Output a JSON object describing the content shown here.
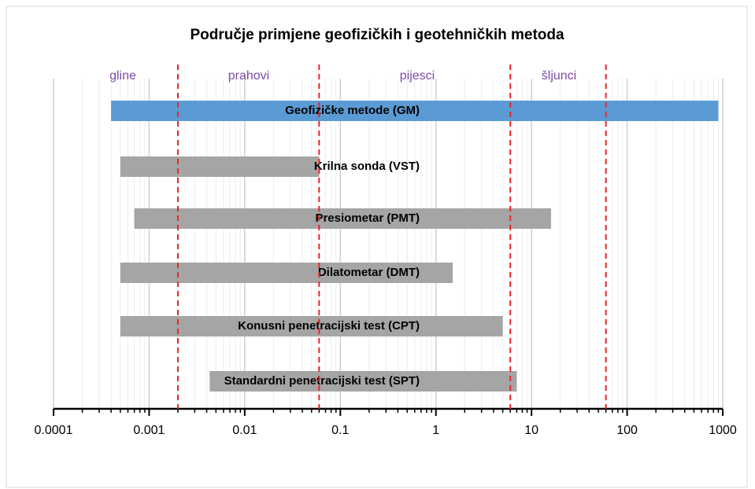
{
  "chart_data": {
    "type": "floating-bar",
    "title": "Područje primjene geofizičkih i geotehničkih metoda",
    "log_x": true,
    "grid": true,
    "minor_grid": true,
    "xlim": [
      0.0001,
      1000
    ],
    "xticks": [
      0.0001,
      0.001,
      0.01,
      0.1,
      1,
      10,
      100,
      1000
    ],
    "zones": [
      "gline",
      "prahovi",
      "pijesci",
      "šljunci"
    ],
    "boundaries": [
      0.002,
      0.06,
      6,
      60
    ],
    "boundary_color": "#e8262a",
    "zone_color": "#7d4aa6",
    "bars": [
      {
        "label": "Geofizičke metode (GM)",
        "start": 0.0004,
        "end": 900,
        "color": "#5b9bd5"
      },
      {
        "label": "Krilna sonda (VST)",
        "start": 0.0005,
        "end": 0.06,
        "color": "#a5a5a5"
      },
      {
        "label": "Presiometar (PMT)",
        "start": 0.0007,
        "end": 16,
        "color": "#a5a5a5"
      },
      {
        "label": "Dilatometar (DMT)",
        "start": 0.0005,
        "end": 1.5,
        "color": "#a5a5a5"
      },
      {
        "label": "Konusni penetracijski test (CPT)",
        "start": 0.0005,
        "end": 5,
        "color": "#a5a5a5"
      },
      {
        "label": "Standardni penetracijski test (SPT)",
        "start": 0.0043,
        "end": 7,
        "color": "#a5a5a5"
      }
    ]
  }
}
